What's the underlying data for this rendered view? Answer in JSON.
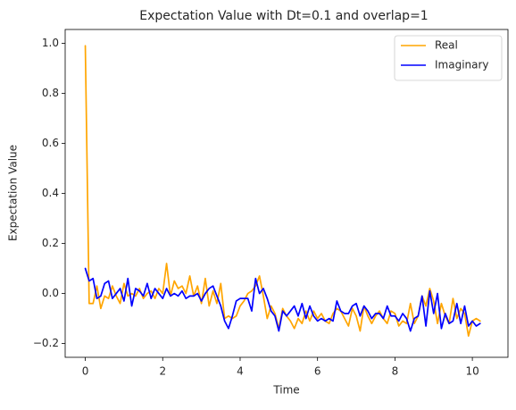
{
  "chart_data": {
    "type": "line",
    "title": "Expectation Value with Dt=0.1 and overlap=1",
    "xlabel": "Time",
    "ylabel": "Expectation Value",
    "xlim": [
      -0.52,
      10.92
    ],
    "ylim": [
      -0.255,
      1.055
    ],
    "xticks": [
      0,
      2,
      4,
      6,
      8,
      10
    ],
    "yticks": [
      -0.2,
      0.0,
      0.2,
      0.4,
      0.6,
      0.8,
      1.0
    ],
    "xtick_labels": [
      "0",
      "2",
      "4",
      "6",
      "8",
      "10"
    ],
    "ytick_labels": [
      "−0.2",
      "0.0",
      "0.2",
      "0.4",
      "0.6",
      "0.8",
      "1.0"
    ],
    "grid": false,
    "legend_position": "top-right",
    "series": [
      {
        "name": "Real",
        "color": "#FFA500",
        "values": [
          0.99,
          -0.04,
          -0.04,
          0.03,
          -0.06,
          -0.01,
          -0.02,
          0.03,
          -0.01,
          -0.04,
          0.04,
          -0.01,
          0.0,
          -0.01,
          0.02,
          -0.02,
          0.0,
          0.01,
          -0.02,
          0.02,
          0.0,
          0.12,
          -0.01,
          0.05,
          0.02,
          0.03,
          0.0,
          0.07,
          -0.01,
          0.03,
          -0.04,
          0.06,
          -0.05,
          0.01,
          -0.04,
          0.04,
          -0.1,
          -0.09,
          -0.1,
          -0.09,
          -0.05,
          -0.03,
          0.0,
          0.01,
          0.03,
          0.07,
          -0.01,
          -0.1,
          -0.05,
          -0.08,
          -0.14,
          -0.06,
          -0.09,
          -0.11,
          -0.14,
          -0.1,
          -0.12,
          -0.07,
          -0.11,
          -0.07,
          -0.1,
          -0.08,
          -0.11,
          -0.12,
          -0.08,
          -0.06,
          -0.07,
          -0.1,
          -0.13,
          -0.06,
          -0.09,
          -0.15,
          -0.05,
          -0.09,
          -0.12,
          -0.09,
          -0.07,
          -0.1,
          -0.12,
          -0.07,
          -0.08,
          -0.13,
          -0.11,
          -0.12,
          -0.04,
          -0.12,
          -0.09,
          -0.01,
          -0.05,
          0.02,
          -0.03,
          -0.12,
          -0.04,
          -0.09,
          -0.12,
          -0.02,
          -0.1,
          -0.06,
          -0.08,
          -0.17,
          -0.11,
          -0.1,
          -0.11
        ]
      },
      {
        "name": "Imaginary",
        "color": "#0000FF",
        "values": [
          0.1,
          0.05,
          0.06,
          -0.02,
          -0.01,
          0.04,
          0.05,
          -0.02,
          0.0,
          0.02,
          -0.03,
          0.06,
          -0.05,
          0.02,
          0.01,
          -0.01,
          0.04,
          -0.02,
          0.02,
          0.0,
          -0.02,
          0.02,
          -0.01,
          0.0,
          -0.01,
          0.01,
          -0.02,
          -0.01,
          -0.01,
          0.0,
          -0.03,
          0.0,
          0.02,
          0.03,
          -0.01,
          -0.05,
          -0.11,
          -0.14,
          -0.09,
          -0.03,
          -0.02,
          -0.02,
          -0.02,
          -0.07,
          0.06,
          0.0,
          0.02,
          -0.02,
          -0.07,
          -0.09,
          -0.15,
          -0.07,
          -0.09,
          -0.07,
          -0.05,
          -0.09,
          -0.04,
          -0.1,
          -0.05,
          -0.09,
          -0.11,
          -0.1,
          -0.11,
          -0.1,
          -0.11,
          -0.03,
          -0.07,
          -0.08,
          -0.08,
          -0.05,
          -0.04,
          -0.09,
          -0.05,
          -0.07,
          -0.1,
          -0.08,
          -0.08,
          -0.1,
          -0.05,
          -0.09,
          -0.09,
          -0.11,
          -0.08,
          -0.1,
          -0.15,
          -0.1,
          -0.09,
          -0.01,
          -0.13,
          0.01,
          -0.08,
          0.0,
          -0.14,
          -0.08,
          -0.12,
          -0.11,
          -0.04,
          -0.12,
          -0.05,
          -0.13,
          -0.11,
          -0.13,
          -0.12
        ]
      }
    ],
    "x_step": 0.1
  }
}
